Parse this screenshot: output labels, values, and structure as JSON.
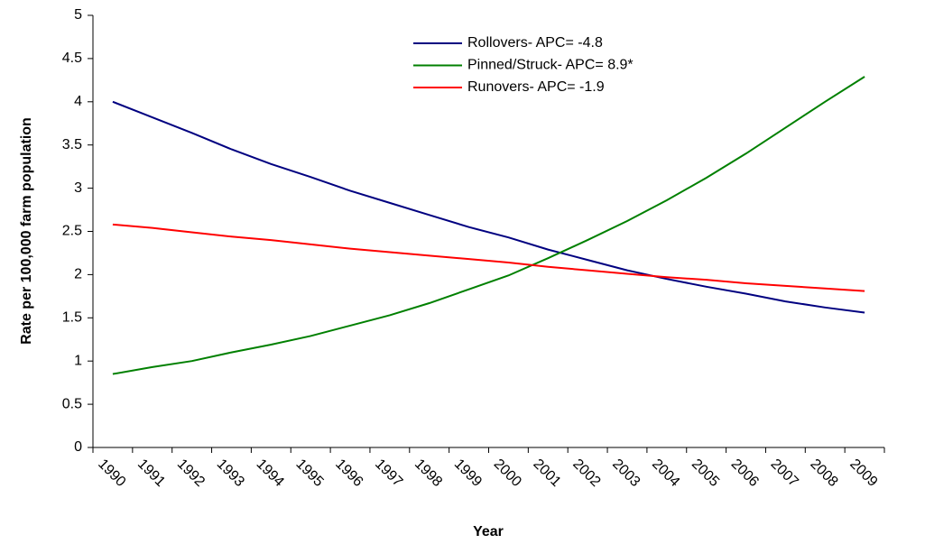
{
  "chart_data": {
    "type": "line",
    "x_label": "Year",
    "y_label": "Rate per 100,000 farm population",
    "categories": [
      "1990",
      "1991",
      "1992",
      "1993",
      "1994",
      "1995",
      "1996",
      "1997",
      "1998",
      "1999",
      "2000",
      "2001",
      "2002",
      "2003",
      "2004",
      "2005",
      "2006",
      "2007",
      "2008",
      "2009"
    ],
    "series": [
      {
        "name": "Rollovers- APC= -4.8",
        "color": "#000080",
        "values": [
          4.0,
          3.82,
          3.64,
          3.45,
          3.28,
          3.13,
          2.97,
          2.83,
          2.69,
          2.55,
          2.43,
          2.29,
          2.17,
          2.05,
          1.95,
          1.86,
          1.78,
          1.69,
          1.62,
          1.56
        ]
      },
      {
        "name": "Pinned/Struck- APC= 8.9*",
        "color": "#008000",
        "values": [
          0.85,
          0.93,
          1.0,
          1.1,
          1.19,
          1.29,
          1.41,
          1.53,
          1.67,
          1.83,
          1.99,
          2.19,
          2.4,
          2.62,
          2.86,
          3.12,
          3.4,
          3.7,
          4.0,
          4.29
        ]
      },
      {
        "name": "Runovers- APC= -1.9",
        "color": "#ff0000",
        "values": [
          2.58,
          2.54,
          2.49,
          2.44,
          2.4,
          2.35,
          2.3,
          2.26,
          2.22,
          2.18,
          2.14,
          2.09,
          2.05,
          2.01,
          1.97,
          1.94,
          1.9,
          1.87,
          1.84,
          1.81
        ]
      }
    ],
    "ylim": [
      0,
      5
    ],
    "yticks": [
      0,
      0.5,
      1,
      1.5,
      2,
      2.5,
      3,
      3.5,
      4,
      4.5,
      5
    ],
    "grid": false,
    "legend": "upper center"
  }
}
